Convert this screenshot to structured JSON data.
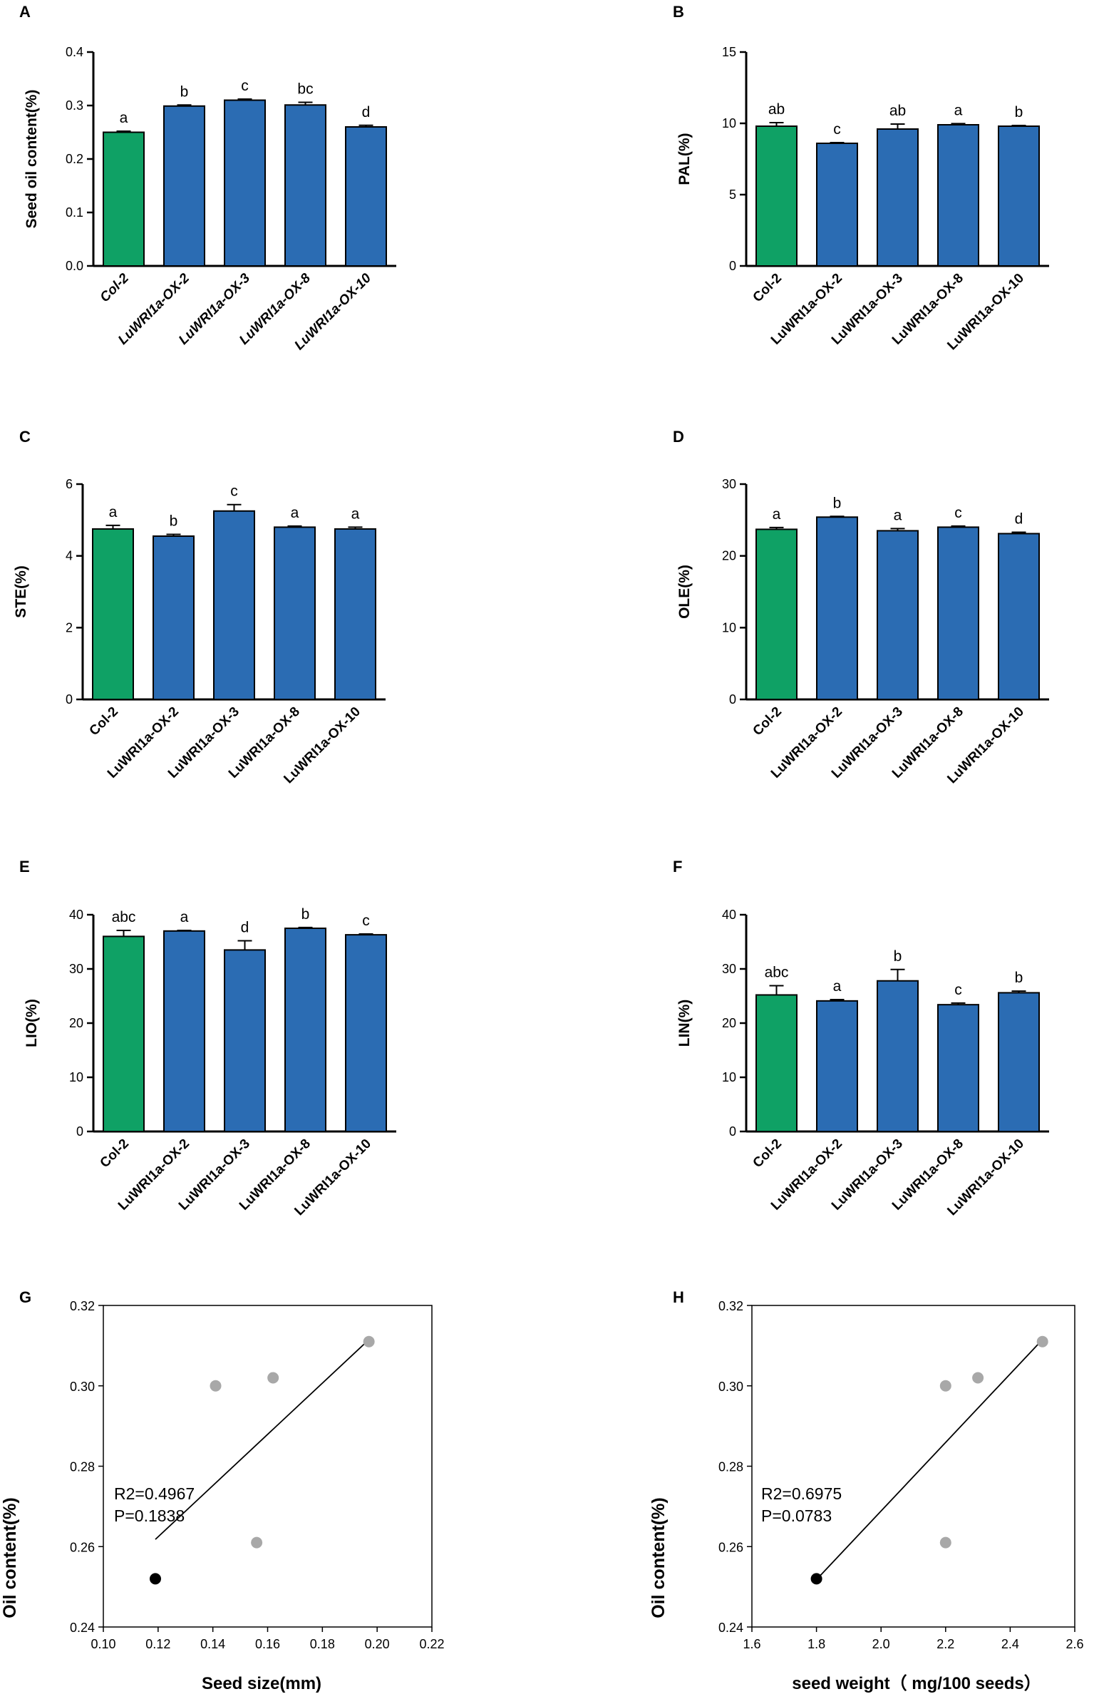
{
  "colors": {
    "control": "#0fa165",
    "overexpression": "#2b6cb3",
    "axis": "#000000",
    "grey_point": "#a8a8a8",
    "black_point": "#000000"
  },
  "chart_data": [
    {
      "type": "bar",
      "panel": "A",
      "ylabel": "Seed oil content(%)",
      "italic_x": true,
      "ylim": [
        0,
        0.4
      ],
      "yticks": [
        0.0,
        0.1,
        0.2,
        0.3,
        0.4
      ],
      "ytick_labels": [
        "0.0",
        "0.1",
        "0.2",
        "0.3",
        "0.4"
      ],
      "categories": [
        "Col-2",
        "LuWRI1a-OX-2",
        "LuWRI1a-OX-3",
        "LuWRI1a-OX-8",
        "LuWRI1a-OX-10"
      ],
      "values": [
        0.25,
        0.299,
        0.31,
        0.301,
        0.26
      ],
      "errors": [
        0.002,
        0.002,
        0.002,
        0.005,
        0.003
      ],
      "letters": [
        "a",
        "b",
        "c",
        "bc",
        "d"
      ]
    },
    {
      "type": "bar",
      "panel": "B",
      "ylabel": "PAL(%)",
      "italic_x": false,
      "ylim": [
        0,
        15
      ],
      "yticks": [
        0,
        5,
        10,
        15
      ],
      "ytick_labels": [
        "0",
        "5",
        "10",
        "15"
      ],
      "categories": [
        "Col-2",
        "LuWRI1a-OX-2",
        "LuWRI1a-OX-3",
        "LuWRI1a-OX-8",
        "LuWRI1a-OX-10"
      ],
      "values": [
        9.8,
        8.6,
        9.6,
        9.9,
        9.8
      ],
      "errors": [
        0.25,
        0.05,
        0.35,
        0.08,
        0.05
      ],
      "letters": [
        "ab",
        "c",
        "ab",
        "a",
        "b"
      ]
    },
    {
      "type": "bar",
      "panel": "C",
      "ylabel": "STE(%)",
      "italic_x": false,
      "ylim": [
        0,
        6
      ],
      "yticks": [
        0,
        2,
        4,
        6
      ],
      "ytick_labels": [
        "0",
        "2",
        "4",
        "6"
      ],
      "categories": [
        "Col-2",
        "LuWRI1a-OX-2",
        "LuWRI1a-OX-3",
        "LuWRI1a-OX-8",
        "LuWRI1a-OX-10"
      ],
      "values": [
        4.75,
        4.55,
        5.25,
        4.8,
        4.75
      ],
      "errors": [
        0.1,
        0.05,
        0.18,
        0.03,
        0.05
      ],
      "letters": [
        "a",
        "b",
        "c",
        "a",
        "a"
      ]
    },
    {
      "type": "bar",
      "panel": "D",
      "ylabel": "OLE(%)",
      "italic_x": false,
      "ylim": [
        0,
        30
      ],
      "yticks": [
        0,
        10,
        20,
        30
      ],
      "ytick_labels": [
        "0",
        "10",
        "20",
        "30"
      ],
      "categories": [
        "Col-2",
        "LuWRI1a-OX-2",
        "LuWRI1a-OX-3",
        "LuWRI1a-OX-8",
        "LuWRI1a-OX-10"
      ],
      "values": [
        23.7,
        25.4,
        23.5,
        24.0,
        23.1
      ],
      "errors": [
        0.25,
        0.1,
        0.3,
        0.15,
        0.2
      ],
      "letters": [
        "a",
        "b",
        "a",
        "c",
        "d"
      ]
    },
    {
      "type": "bar",
      "panel": "E",
      "ylabel": "LIO(%)",
      "italic_x": false,
      "ylim": [
        0,
        40
      ],
      "yticks": [
        0,
        10,
        20,
        30,
        40
      ],
      "ytick_labels": [
        "0",
        "10",
        "20",
        "30",
        "40"
      ],
      "categories": [
        "Col-2",
        "LuWRI1a-OX-2",
        "LuWRI1a-OX-3",
        "LuWRI1a-OX-8",
        "LuWRI1a-OX-10"
      ],
      "values": [
        36.0,
        37.0,
        33.5,
        37.5,
        36.3
      ],
      "errors": [
        1.1,
        0.1,
        1.7,
        0.15,
        0.15
      ],
      "letters": [
        "abc",
        "a",
        "d",
        "b",
        "c"
      ]
    },
    {
      "type": "bar",
      "panel": "F",
      "ylabel": "LIN(%)",
      "italic_x": false,
      "ylim": [
        0,
        40
      ],
      "yticks": [
        0,
        10,
        20,
        30,
        40
      ],
      "ytick_labels": [
        "0",
        "10",
        "20",
        "30",
        "40"
      ],
      "categories": [
        "Col-2",
        "LuWRI1a-OX-2",
        "LuWRI1a-OX-3",
        "LuWRI1a-OX-8",
        "LuWRI1a-OX-10"
      ],
      "values": [
        25.2,
        24.1,
        27.8,
        23.4,
        25.6
      ],
      "errors": [
        1.7,
        0.25,
        2.1,
        0.3,
        0.3
      ],
      "letters": [
        "abc",
        "a",
        "b",
        "c",
        "b"
      ]
    },
    {
      "type": "scatter",
      "panel": "G",
      "xlabel": "Seed size(mm)",
      "ylabel": "Oil content(%)",
      "xlim": [
        0.1,
        0.22
      ],
      "xticks": [
        0.1,
        0.12,
        0.14,
        0.16,
        0.18,
        0.2,
        0.22
      ],
      "xtick_labels": [
        "0.10",
        "0.12",
        "0.14",
        "0.16",
        "0.18",
        "0.20",
        "0.22"
      ],
      "ylim": [
        0.24,
        0.32
      ],
      "yticks": [
        0.24,
        0.26,
        0.28,
        0.3,
        0.32
      ],
      "ytick_labels": [
        "0.24",
        "0.26",
        "0.28",
        "0.30",
        "0.32"
      ],
      "points": [
        {
          "x": 0.119,
          "y": 0.252,
          "group": "control"
        },
        {
          "x": 0.141,
          "y": 0.3,
          "group": "overexpression"
        },
        {
          "x": 0.162,
          "y": 0.302,
          "group": "overexpression"
        },
        {
          "x": 0.197,
          "y": 0.311,
          "group": "overexpression"
        },
        {
          "x": 0.156,
          "y": 0.261,
          "group": "overexpression"
        }
      ],
      "fit_line": {
        "x": [
          0.119,
          0.197
        ],
        "y": [
          0.2618,
          0.3115
        ]
      },
      "stats": [
        "R2=0.4967",
        "P=0.1838"
      ]
    },
    {
      "type": "scatter",
      "panel": "H",
      "xlabel": "seed weight（ mg/100 seeds）",
      "ylabel": "Oil content(%)",
      "xlim": [
        1.6,
        2.6
      ],
      "xticks": [
        1.6,
        1.8,
        2.0,
        2.2,
        2.4,
        2.6
      ],
      "xtick_labels": [
        "1.6",
        "1.8",
        "2.0",
        "2.2",
        "2.4",
        "2.6"
      ],
      "ylim": [
        0.24,
        0.32
      ],
      "yticks": [
        0.24,
        0.26,
        0.28,
        0.3,
        0.32
      ],
      "ytick_labels": [
        "0.24",
        "0.26",
        "0.28",
        "0.30",
        "0.32"
      ],
      "points": [
        {
          "x": 1.8,
          "y": 0.252,
          "group": "control"
        },
        {
          "x": 2.2,
          "y": 0.3,
          "group": "overexpression"
        },
        {
          "x": 2.3,
          "y": 0.302,
          "group": "overexpression"
        },
        {
          "x": 2.5,
          "y": 0.311,
          "group": "overexpression"
        },
        {
          "x": 2.2,
          "y": 0.261,
          "group": "overexpression"
        }
      ],
      "fit_line": {
        "x": [
          1.8,
          2.5
        ],
        "y": [
          0.2518,
          0.3115
        ]
      },
      "stats": [
        "R2=0.6975",
        "P=0.0783"
      ]
    }
  ]
}
